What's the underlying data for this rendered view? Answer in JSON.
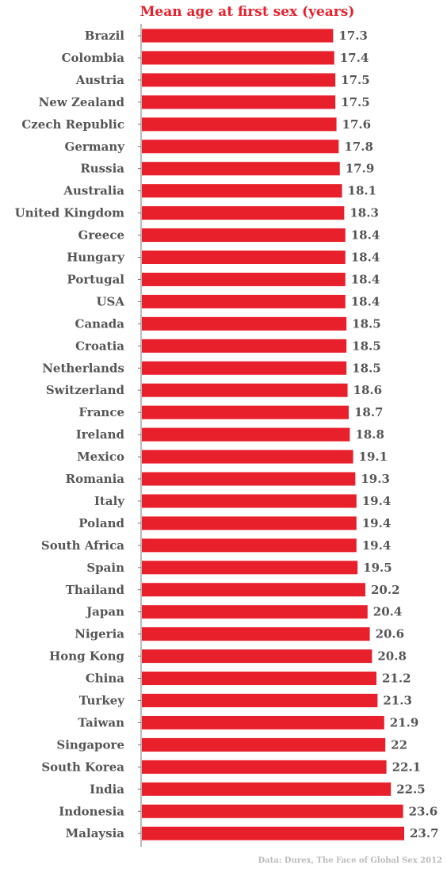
{
  "chart_data": {
    "type": "bar",
    "orientation": "horizontal",
    "title": "Mean age at first sex (years)",
    "source": "Data: Durex, The Face of Global Sex 2012",
    "bar_color": "#e8202c",
    "categories": [
      "Brazil",
      "Colombia",
      "Austria",
      "New Zealand",
      "Czech Republic",
      "Germany",
      "Russia",
      "Australia",
      "United Kingdom",
      "Greece",
      "Hungary",
      "Portugal",
      "USA",
      "Canada",
      "Croatia",
      "Netherlands",
      "Switzerland",
      "France",
      "Ireland",
      "Mexico",
      "Romania",
      "Italy",
      "Poland",
      "South Africa",
      "Spain",
      "Thailand",
      "Japan",
      "Nigeria",
      "Hong Kong",
      "China",
      "Turkey",
      "Taiwan",
      "Singapore",
      "South Korea",
      "India",
      "Indonesia",
      "Malaysia"
    ],
    "values": [
      17.3,
      17.4,
      17.5,
      17.5,
      17.6,
      17.8,
      17.9,
      18.1,
      18.3,
      18.4,
      18.4,
      18.4,
      18.4,
      18.5,
      18.5,
      18.5,
      18.6,
      18.7,
      18.8,
      19.1,
      19.3,
      19.4,
      19.4,
      19.4,
      19.5,
      20.2,
      20.4,
      20.6,
      20.8,
      21.2,
      21.3,
      21.9,
      22,
      22.1,
      22.5,
      23.6,
      23.7
    ],
    "value_labels": [
      "17.3",
      "17.4",
      "17.5",
      "17.5",
      "17.6",
      "17.8",
      "17.9",
      "18.1",
      "18.3",
      "18.4",
      "18.4",
      "18.4",
      "18.4",
      "18.5",
      "18.5",
      "18.5",
      "18.6",
      "18.7",
      "18.8",
      "19.1",
      "19.3",
      "19.4",
      "19.4",
      "19.4",
      "19.5",
      "20.2",
      "20.4",
      "20.6",
      "20.8",
      "21.2",
      "21.3",
      "21.9",
      "22",
      "22.1",
      "22.5",
      "23.6",
      "23.7"
    ],
    "xlim": [
      0,
      23.7
    ],
    "grid": false,
    "legend": "none"
  }
}
